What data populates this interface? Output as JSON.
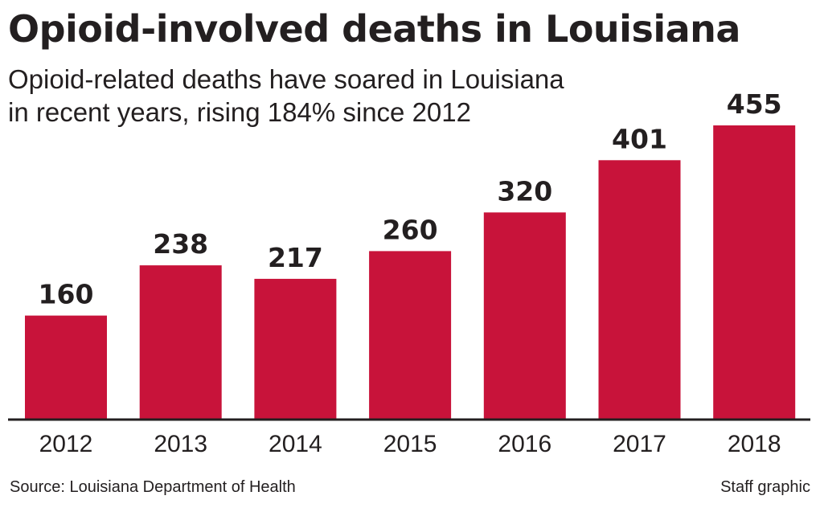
{
  "chart_data": {
    "type": "bar",
    "title": "Opioid-involved deaths in Louisiana",
    "subtitle": "Opioid-related deaths have soared in Louisiana in recent years, rising 184% since 2012",
    "categories": [
      "2012",
      "2013",
      "2014",
      "2015",
      "2016",
      "2017",
      "2018"
    ],
    "values": [
      160,
      238,
      217,
      260,
      320,
      401,
      455
    ],
    "xlabel": "",
    "ylabel": "",
    "ylim": [
      0,
      455
    ],
    "grid": false,
    "bar_color": "#c8133a",
    "source": "Source: Louisiana Department of Health",
    "credit": "Staff graphic"
  }
}
